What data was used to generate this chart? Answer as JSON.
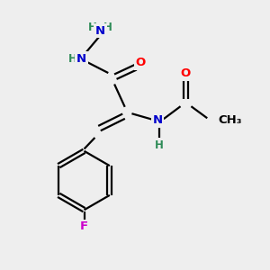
{
  "bg_color": "#eeeeee",
  "atom_colors": {
    "C": "#000000",
    "N": "#0000cc",
    "O": "#ff0000",
    "H": "#2e8b57",
    "F": "#cc00cc"
  },
  "bond_color": "#000000",
  "bond_width": 1.6,
  "doffset": 0.13,
  "figsize": [
    3.0,
    3.0
  ],
  "dpi": 100,
  "xlim": [
    0,
    10
  ],
  "ylim": [
    0,
    10
  ]
}
